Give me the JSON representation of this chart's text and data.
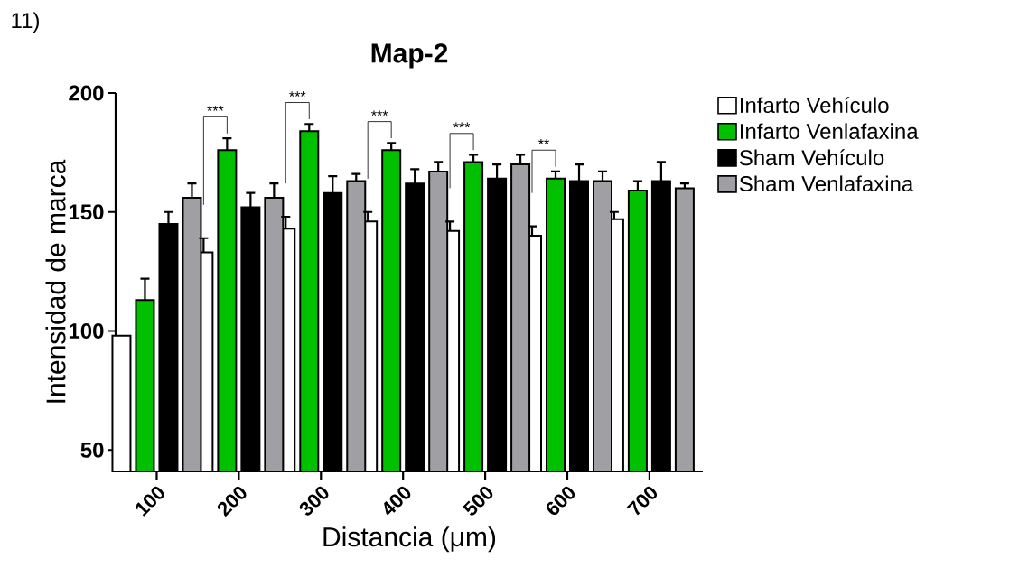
{
  "chart_data": {
    "type": "bar",
    "title": "Map-2",
    "xlabel": "Distancia (μm)",
    "ylabel": "Intensidad de marca",
    "categories": [
      "100",
      "200",
      "300",
      "400",
      "500",
      "600",
      "700"
    ],
    "series": [
      {
        "name": "Infarto Vehículo",
        "color": "#ffffff",
        "values": [
          98,
          133,
          143,
          146,
          142,
          140,
          147
        ],
        "errors": [
          null,
          [
            133,
            139
          ],
          [
            143,
            148
          ],
          [
            146,
            150
          ],
          [
            142,
            146
          ],
          [
            140,
            144
          ],
          [
            147,
            150
          ]
        ]
      },
      {
        "name": "Infarto Venlafaxina",
        "color": "#00c000",
        "values": [
          113,
          176,
          184,
          176,
          171,
          164,
          159
        ],
        "errors": [
          [
            113,
            122
          ],
          [
            176,
            181
          ],
          [
            184,
            187
          ],
          [
            176,
            179
          ],
          [
            171,
            174
          ],
          [
            164,
            167
          ],
          [
            159,
            163
          ]
        ]
      },
      {
        "name": "Sham Vehículo",
        "color": "#000000",
        "values": [
          145,
          152,
          158,
          162,
          164,
          163,
          163
        ],
        "errors": [
          [
            145,
            150
          ],
          [
            152,
            158
          ],
          [
            158,
            165
          ],
          [
            162,
            168
          ],
          [
            164,
            170
          ],
          [
            163,
            170
          ],
          [
            163,
            171
          ]
        ]
      },
      {
        "name": "Sham Venlafaxina",
        "color": "#a0a0a4",
        "values": [
          156,
          156,
          163,
          167,
          170,
          163,
          160
        ],
        "errors": [
          [
            156,
            162
          ],
          [
            156,
            162
          ],
          [
            163,
            166
          ],
          [
            167,
            171
          ],
          [
            170,
            174
          ],
          [
            163,
            167
          ],
          [
            160,
            162
          ]
        ]
      }
    ],
    "ylim": [
      41,
      200
    ],
    "yticks": [
      50,
      100,
      150,
      200
    ],
    "grid": false,
    "legend": "right",
    "annotations": [
      "11)",
      "***",
      "***",
      "***",
      "***",
      "**"
    ]
  }
}
